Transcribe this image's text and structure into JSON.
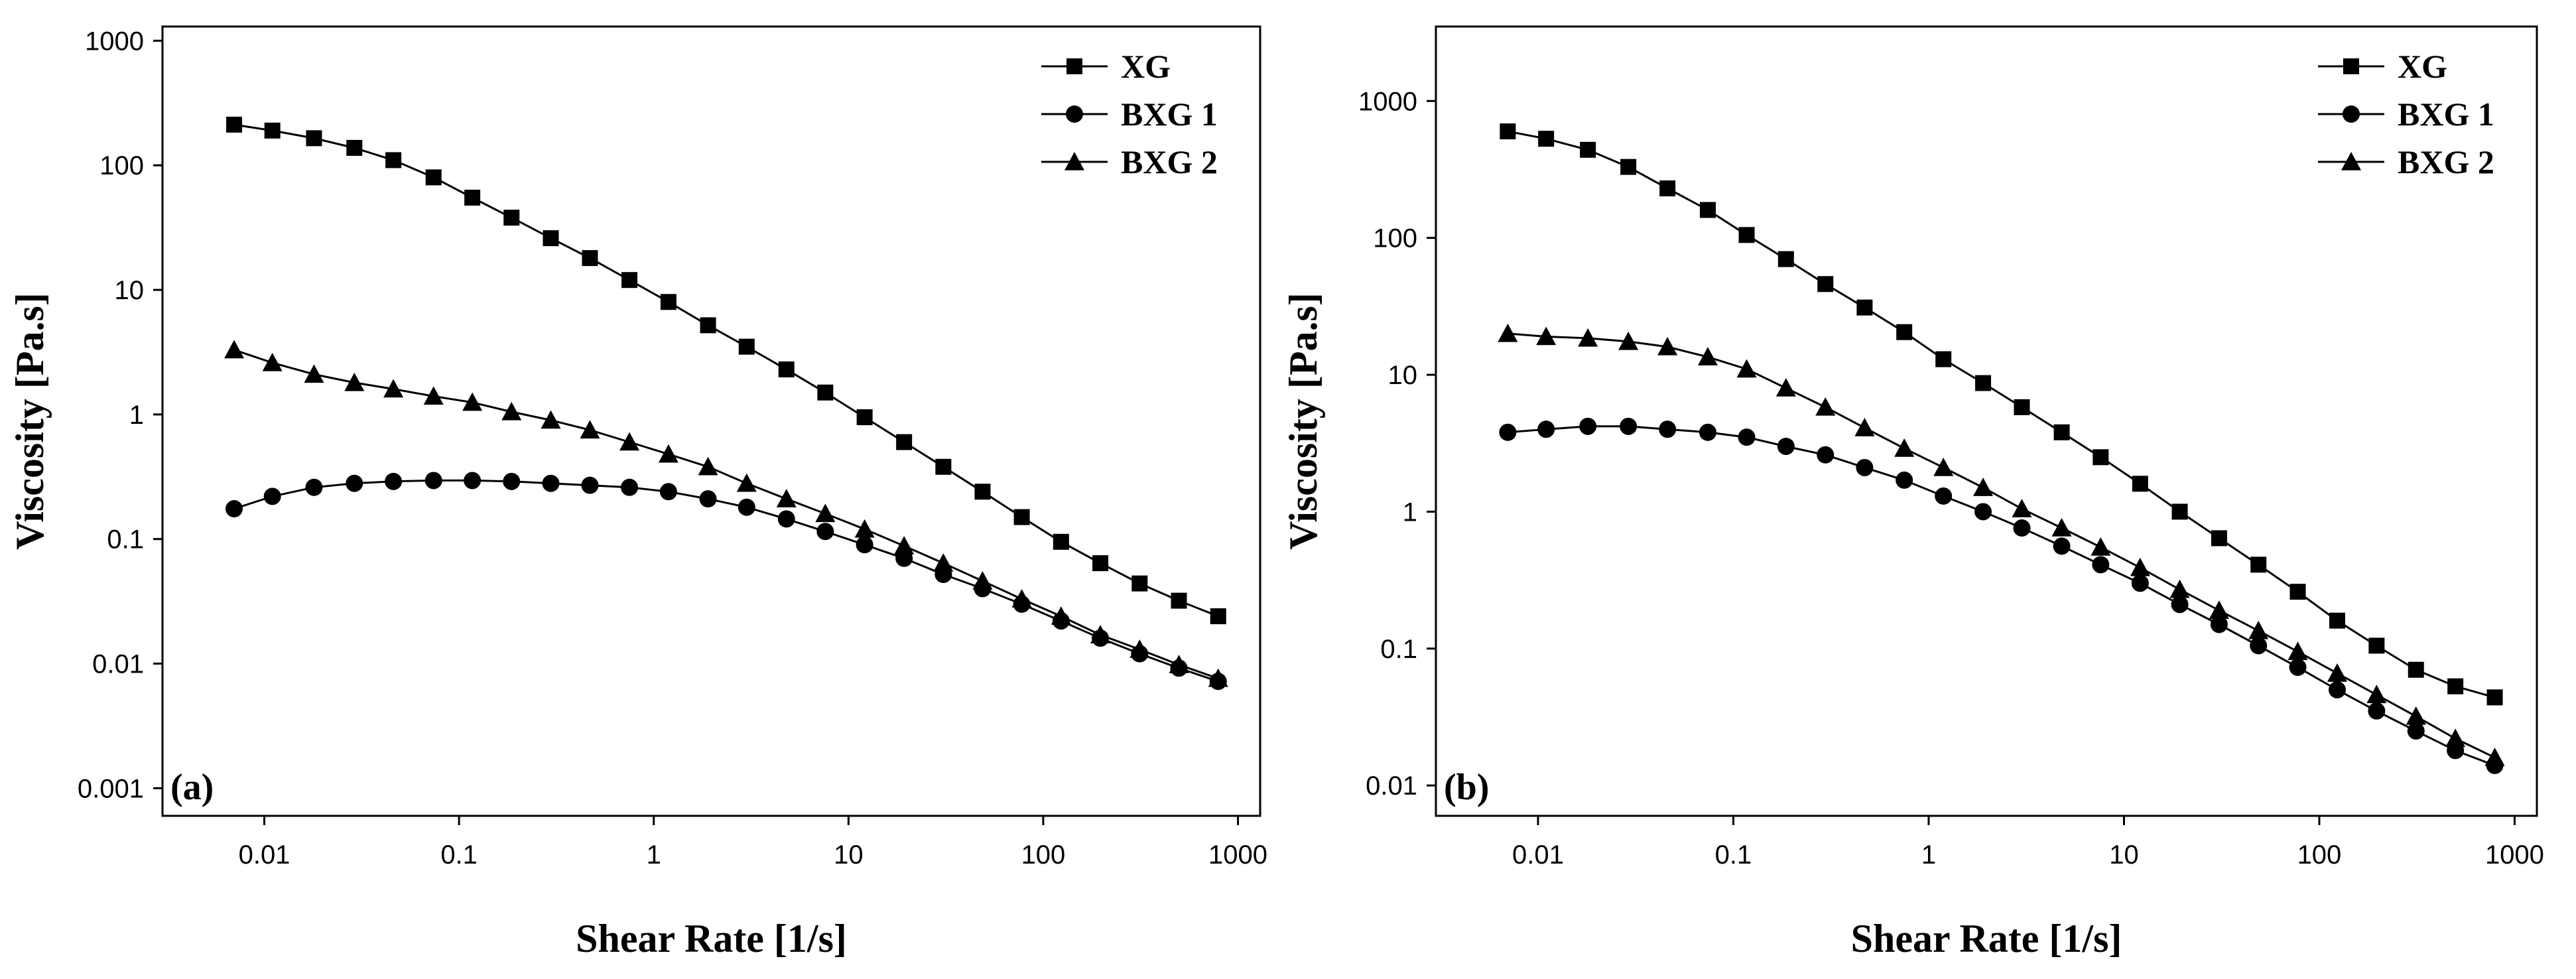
{
  "chart_data": [
    {
      "type": "line",
      "panel_label": "(a)",
      "xlabel": "Shear Rate [1/s]",
      "ylabel": "Viscosity [Pa.s]",
      "xscale": "log",
      "yscale": "log",
      "xlim": [
        0.003,
        1300
      ],
      "ylim": [
        0.0006,
        1300
      ],
      "x_ticks": [
        0.01,
        0.1,
        1,
        10,
        100,
        1000
      ],
      "x_tick_labels": [
        "0.01",
        "0.1",
        "1",
        "10",
        "100",
        "1000"
      ],
      "y_ticks": [
        0.001,
        0.01,
        0.1,
        1,
        10,
        100,
        1000
      ],
      "y_tick_labels": [
        "0.001",
        "0.01",
        "0.1",
        "1",
        "10",
        "100",
        "1000"
      ],
      "legend_position": "top-right",
      "x": [
        0.007,
        0.011,
        0.018,
        0.029,
        0.046,
        0.074,
        0.117,
        0.186,
        0.296,
        0.47,
        0.75,
        1.19,
        1.9,
        3.0,
        4.8,
        7.6,
        12.1,
        19.3,
        30.7,
        48.8,
        77.6,
        123.5,
        196.5,
        312.7,
        497.5,
        791.5
      ],
      "series": [
        {
          "name": "XG",
          "marker": "square",
          "values": [
            212,
            190,
            165,
            138,
            110,
            80,
            55,
            38,
            26,
            18,
            12,
            8,
            5.2,
            3.5,
            2.3,
            1.5,
            0.95,
            0.6,
            0.38,
            0.24,
            0.15,
            0.095,
            0.064,
            0.044,
            0.032,
            0.024
          ]
        },
        {
          "name": "BXG 1",
          "marker": "circle",
          "values": [
            0.175,
            0.22,
            0.26,
            0.28,
            0.29,
            0.295,
            0.295,
            0.29,
            0.28,
            0.27,
            0.26,
            0.24,
            0.21,
            0.18,
            0.145,
            0.115,
            0.09,
            0.07,
            0.052,
            0.04,
            0.03,
            0.022,
            0.016,
            0.012,
            0.0092,
            0.0072
          ]
        },
        {
          "name": "BXG 2",
          "marker": "triangle",
          "values": [
            3.3,
            2.6,
            2.1,
            1.8,
            1.6,
            1.4,
            1.25,
            1.05,
            0.9,
            0.75,
            0.6,
            0.48,
            0.38,
            0.28,
            0.21,
            0.16,
            0.12,
            0.088,
            0.064,
            0.046,
            0.033,
            0.024,
            0.017,
            0.013,
            0.0098,
            0.0076
          ]
        }
      ]
    },
    {
      "type": "line",
      "panel_label": "(b)",
      "xlabel": "Shear Rate [1/s]",
      "ylabel": "Viscosity [Pa.s]",
      "xscale": "log",
      "yscale": "log",
      "xlim": [
        0.003,
        1300
      ],
      "ylim": [
        0.006,
        3500
      ],
      "x_ticks": [
        0.01,
        0.1,
        1,
        10,
        100,
        1000
      ],
      "x_tick_labels": [
        "0.01",
        "0.1",
        "1",
        "10",
        "100",
        "1000"
      ],
      "y_ticks": [
        0.01,
        0.1,
        1,
        10,
        100,
        1000
      ],
      "y_tick_labels": [
        "0.01",
        "0.1",
        "1",
        "10",
        "100",
        "1000"
      ],
      "legend_position": "top-right",
      "x": [
        0.007,
        0.011,
        0.018,
        0.029,
        0.046,
        0.074,
        0.117,
        0.186,
        0.296,
        0.47,
        0.75,
        1.19,
        1.9,
        3.0,
        4.8,
        7.6,
        12.1,
        19.3,
        30.7,
        48.8,
        77.6,
        123.5,
        196.5,
        312.7,
        497.5,
        791.5
      ],
      "series": [
        {
          "name": "XG",
          "marker": "square",
          "values": [
            600,
            530,
            440,
            330,
            230,
            160,
            105,
            70,
            46,
            31,
            20.5,
            13,
            8.7,
            5.8,
            3.8,
            2.5,
            1.6,
            1.0,
            0.64,
            0.41,
            0.26,
            0.16,
            0.105,
            0.07,
            0.053,
            0.044
          ]
        },
        {
          "name": "BXG 1",
          "marker": "circle",
          "values": [
            3.8,
            4.0,
            4.2,
            4.2,
            4.0,
            3.8,
            3.5,
            3.0,
            2.6,
            2.1,
            1.7,
            1.3,
            1.0,
            0.76,
            0.56,
            0.41,
            0.3,
            0.21,
            0.15,
            0.105,
            0.073,
            0.05,
            0.035,
            0.025,
            0.018,
            0.014
          ]
        },
        {
          "name": "BXG 2",
          "marker": "triangle",
          "values": [
            20,
            19,
            18.5,
            17.5,
            16,
            13.5,
            11,
            8,
            5.8,
            4.1,
            2.9,
            2.1,
            1.5,
            1.05,
            0.76,
            0.55,
            0.39,
            0.27,
            0.19,
            0.135,
            0.095,
            0.066,
            0.046,
            0.032,
            0.022,
            0.016
          ]
        }
      ]
    }
  ]
}
